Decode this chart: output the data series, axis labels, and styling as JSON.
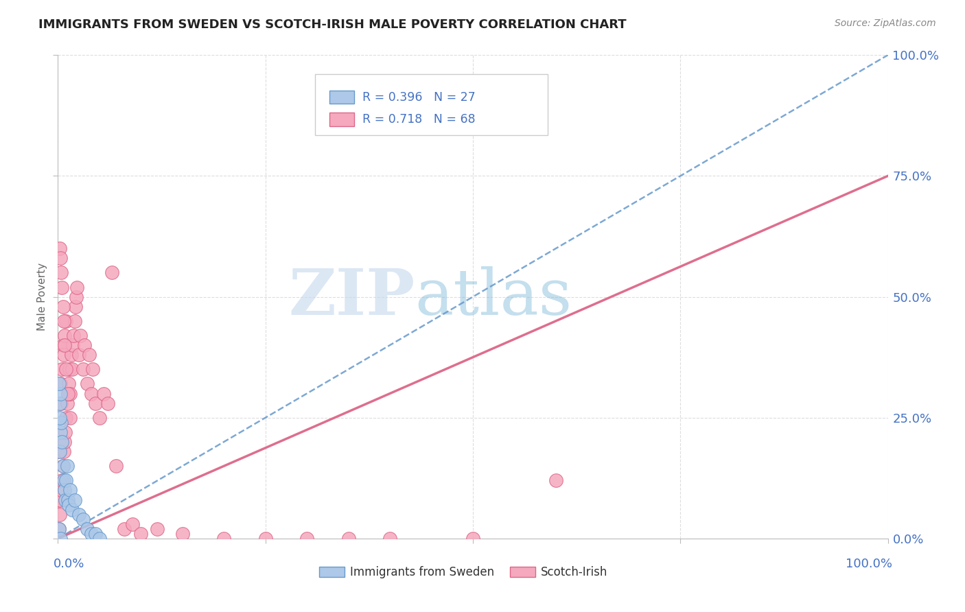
{
  "title": "IMMIGRANTS FROM SWEDEN VS SCOTCH-IRISH MALE POVERTY CORRELATION CHART",
  "source": "Source: ZipAtlas.com",
  "ylabel": "Male Poverty",
  "watermark_zip": "ZIP",
  "watermark_atlas": "atlas",
  "legend_sweden_R": "R = 0.396",
  "legend_sweden_N": "N = 27",
  "legend_scotch_R": "R = 0.718",
  "legend_scotch_N": "N = 68",
  "sweden_fill": "#adc8e8",
  "sweden_edge": "#6699cc",
  "scotch_fill": "#f5a8be",
  "scotch_edge": "#dd6688",
  "sweden_line_color": "#6699cc",
  "scotch_line_color": "#dd6688",
  "axis_label_color": "#4472c4",
  "title_color": "#222222",
  "source_color": "#888888",
  "ylabel_color": "#666666",
  "grid_color": "#dddddd",
  "background": "#ffffff",
  "legend_text_color": "#4472c4",
  "bottom_legend_text_color": "#333333",
  "sweden_scatter_x": [
    0.001,
    0.002,
    0.002,
    0.003,
    0.003,
    0.004,
    0.005,
    0.006,
    0.007,
    0.008,
    0.009,
    0.01,
    0.011,
    0.012,
    0.013,
    0.015,
    0.017,
    0.02,
    0.025,
    0.03,
    0.035,
    0.04,
    0.045,
    0.05,
    0.001,
    0.002,
    0.003
  ],
  "sweden_scatter_y": [
    0.02,
    0.18,
    0.28,
    0.22,
    0.3,
    0.24,
    0.2,
    0.15,
    0.12,
    0.1,
    0.08,
    0.12,
    0.15,
    0.08,
    0.07,
    0.1,
    0.06,
    0.08,
    0.05,
    0.04,
    0.02,
    0.01,
    0.01,
    0.0,
    0.32,
    0.25,
    0.0
  ],
  "scotch_scatter_x": [
    0.001,
    0.001,
    0.002,
    0.002,
    0.003,
    0.003,
    0.004,
    0.004,
    0.005,
    0.005,
    0.006,
    0.006,
    0.007,
    0.007,
    0.008,
    0.008,
    0.009,
    0.01,
    0.01,
    0.011,
    0.012,
    0.013,
    0.014,
    0.015,
    0.016,
    0.017,
    0.018,
    0.019,
    0.02,
    0.021,
    0.022,
    0.023,
    0.025,
    0.027,
    0.03,
    0.032,
    0.035,
    0.038,
    0.04,
    0.042,
    0.045,
    0.05,
    0.055,
    0.06,
    0.065,
    0.07,
    0.08,
    0.09,
    0.1,
    0.12,
    0.15,
    0.2,
    0.25,
    0.3,
    0.35,
    0.4,
    0.5,
    0.6,
    0.002,
    0.003,
    0.004,
    0.005,
    0.006,
    0.007,
    0.008,
    0.01,
    0.012,
    0.015
  ],
  "scotch_scatter_y": [
    0.02,
    0.08,
    0.05,
    0.18,
    0.08,
    0.32,
    0.1,
    0.28,
    0.12,
    0.35,
    0.15,
    0.4,
    0.18,
    0.38,
    0.2,
    0.42,
    0.22,
    0.25,
    0.45,
    0.28,
    0.3,
    0.32,
    0.35,
    0.3,
    0.38,
    0.35,
    0.4,
    0.42,
    0.45,
    0.48,
    0.5,
    0.52,
    0.38,
    0.42,
    0.35,
    0.4,
    0.32,
    0.38,
    0.3,
    0.35,
    0.28,
    0.25,
    0.3,
    0.28,
    0.55,
    0.15,
    0.02,
    0.03,
    0.01,
    0.02,
    0.01,
    0.0,
    0.0,
    0.0,
    0.0,
    0.0,
    0.0,
    0.12,
    0.6,
    0.58,
    0.55,
    0.52,
    0.48,
    0.45,
    0.4,
    0.35,
    0.3,
    0.25
  ],
  "xlim": [
    0.0,
    1.0
  ],
  "ylim": [
    0.0,
    1.0
  ],
  "yticks": [
    0.0,
    0.25,
    0.5,
    0.75,
    1.0
  ],
  "ytick_labels": [
    "0.0%",
    "25.0%",
    "50.0%",
    "75.0%",
    "100.0%"
  ],
  "xticks": [
    0.0,
    0.25,
    0.5,
    0.75,
    1.0
  ],
  "sweden_regline_x": [
    0.0,
    1.0
  ],
  "sweden_regline_y": [
    0.0,
    1.0
  ],
  "scotch_regline_x": [
    0.0,
    1.0
  ],
  "scotch_regline_y": [
    0.0,
    0.75
  ]
}
